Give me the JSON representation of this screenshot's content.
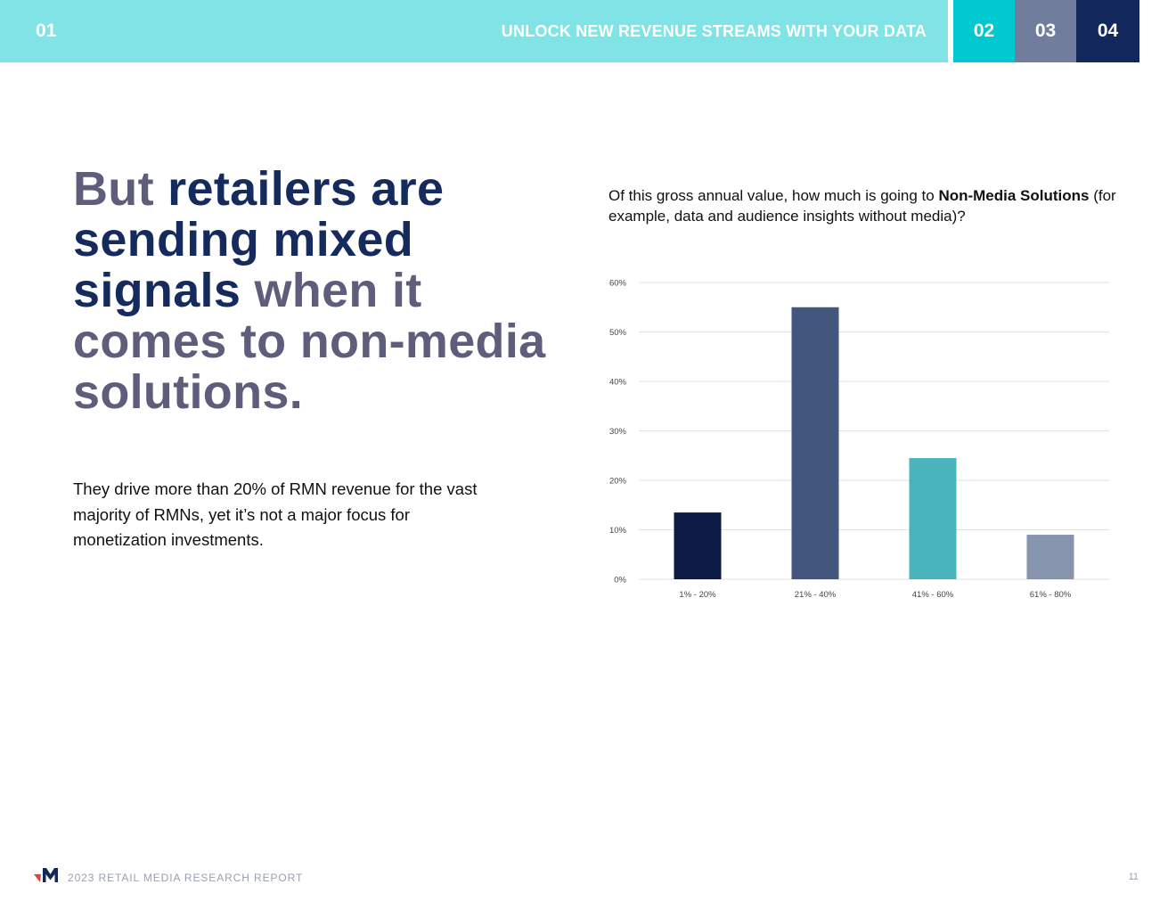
{
  "nav": {
    "section_number": "01",
    "title": "UNLOCK NEW REVENUE STREAMS WITH YOUR DATA",
    "tabs": [
      {
        "label": "02",
        "color": "#00c8cf"
      },
      {
        "label": "03",
        "color": "#717d9c"
      },
      {
        "label": "04",
        "color": "#12275c"
      }
    ],
    "bar_color": "#80e3e5"
  },
  "headline": {
    "parts": [
      {
        "text": "But ",
        "style": "muted"
      },
      {
        "text": "retailers are sending mixed signals",
        "style": "strong"
      },
      {
        "text": " when it comes to non-media solutions.",
        "style": "muted"
      }
    ]
  },
  "body": {
    "text": "They drive more than 20% of RMN revenue for the vast majority of RMNs, yet it’s not a major focus for monetization investments."
  },
  "question": {
    "prefix": "Of this gross annual value, how much is going to ",
    "emphasis": "Non-Media Solutions",
    "suffix": " (for example, data and audience insights without media)?"
  },
  "chart_data": {
    "type": "bar",
    "title": "",
    "xlabel": "",
    "ylabel": "",
    "categories": [
      "1% - 20%",
      "21% - 40%",
      "41% - 60%",
      "61% - 80%"
    ],
    "values": [
      13.5,
      55,
      24.5,
      9
    ],
    "colors": [
      "#0c1a45",
      "#43577e",
      "#4ab4bd",
      "#8794ae"
    ],
    "ylim": [
      0,
      60
    ],
    "yticks": [
      "0%",
      "10%",
      "20%",
      "30%",
      "40%",
      "50%",
      "60%"
    ],
    "grid": true,
    "legend": "none"
  },
  "footer": {
    "report_title": "2023 RETAIL MEDIA RESEARCH REPORT",
    "page_number": "11",
    "logo_colors": [
      "#e0452e",
      "#12275c"
    ]
  }
}
